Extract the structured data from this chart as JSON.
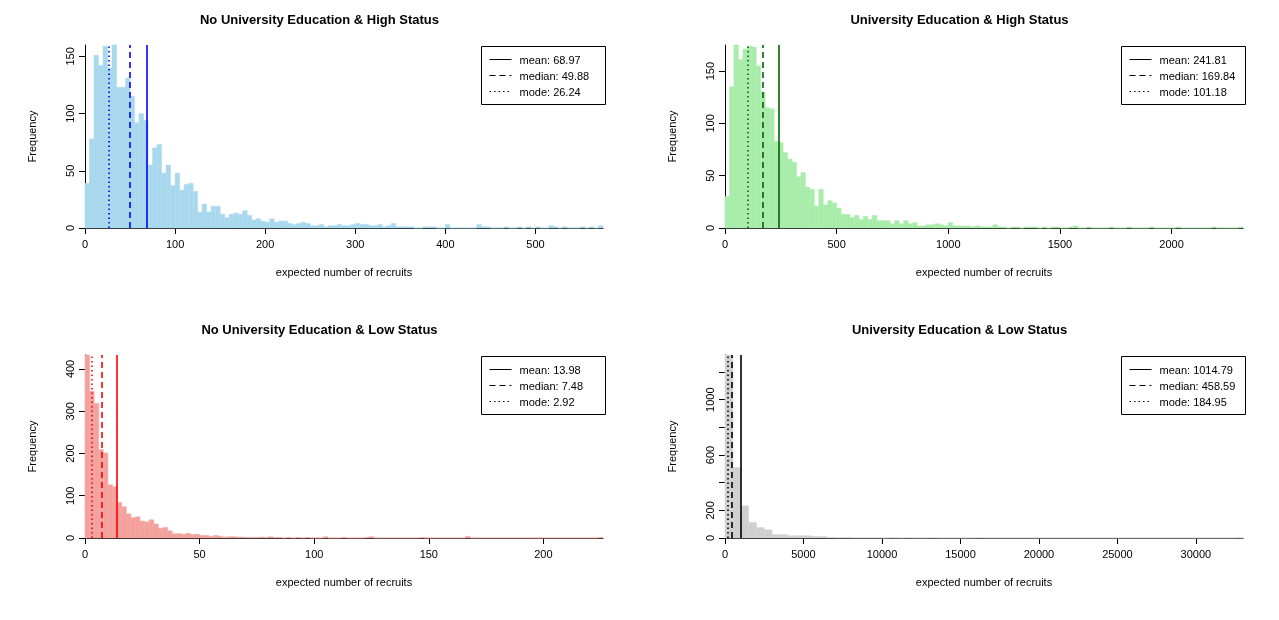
{
  "chart_data": [
    {
      "type": "histogram",
      "title": "No University Education & High Status",
      "xlabel": "expected number of recruits",
      "ylabel": "Frequency",
      "color": "#a8d8ee",
      "bins": [
        0,
        5,
        10,
        15,
        20,
        25,
        30,
        35,
        40,
        45,
        50,
        55,
        60,
        65,
        70,
        75,
        80,
        85,
        90,
        95,
        100,
        105,
        110,
        115,
        120,
        125,
        130,
        135,
        140,
        145,
        150,
        155,
        160,
        165,
        170,
        175,
        180,
        185,
        190,
        195,
        200,
        205,
        210,
        215,
        220,
        225,
        230,
        235,
        240,
        245,
        250,
        255,
        260,
        265,
        270,
        275,
        280,
        285,
        290,
        295,
        300,
        305,
        310,
        315,
        320,
        325,
        330,
        335,
        340,
        345,
        350,
        355,
        360,
        365,
        370,
        375,
        380,
        385,
        390,
        395,
        400,
        405,
        410,
        415,
        420,
        425,
        430,
        435,
        440,
        445,
        450,
        455,
        460,
        465,
        470,
        475,
        480,
        485,
        490,
        495,
        500,
        505,
        510,
        515,
        520,
        525,
        530,
        535,
        540,
        545,
        550,
        555,
        560,
        565,
        570,
        575
      ],
      "values": [
        39,
        78,
        151,
        142,
        159,
        140,
        160,
        123,
        123,
        131,
        115,
        92,
        100,
        94,
        55,
        70,
        73,
        48,
        55,
        37,
        48,
        33,
        38,
        39,
        32,
        14,
        21,
        14,
        19,
        19,
        12,
        9,
        12,
        13,
        12,
        15,
        11,
        7,
        8,
        6,
        5,
        8,
        5,
        6,
        6,
        4,
        3,
        4,
        5,
        4,
        2,
        2,
        3,
        1,
        2,
        2,
        3,
        2,
        2,
        3,
        4,
        3,
        3,
        2,
        2,
        3,
        1,
        2,
        4,
        1,
        1,
        1,
        1,
        0,
        0,
        1,
        1,
        1,
        0,
        0,
        3,
        0,
        0,
        0,
        0,
        0,
        0,
        3,
        1,
        1,
        0,
        0,
        0,
        1,
        0,
        0,
        1,
        0,
        1,
        0,
        1,
        0,
        0,
        2,
        1,
        0,
        1,
        0,
        0,
        0,
        1,
        0,
        1,
        0,
        2
      ],
      "xlim": [
        0,
        575
      ],
      "xticks": [
        0,
        100,
        200,
        300,
        400,
        500
      ],
      "ylim": [
        0,
        160
      ],
      "yticks": [
        0,
        50,
        100,
        150
      ],
      "grid": false,
      "annotations": [
        "mean: 68.97",
        "median: 49.88",
        "mode: 26.24"
      ],
      "ref_lines": [
        {
          "axis": "x",
          "value": 68.97,
          "color": "#0000ff",
          "line_style": "solid"
        },
        {
          "axis": "x",
          "value": 49.88,
          "color": "#0000ff",
          "line_style": "dashed"
        },
        {
          "axis": "x",
          "value": 26.24,
          "color": "#0000ff",
          "line_style": "dotted"
        }
      ]
    },
    {
      "type": "histogram",
      "title": "University Education & High Status",
      "xlabel": "expected number of recruits",
      "ylabel": "Frequency",
      "color": "#a8ecaa",
      "bins": [
        0,
        20,
        40,
        60,
        80,
        100,
        120,
        140,
        160,
        180,
        200,
        220,
        240,
        260,
        280,
        300,
        320,
        340,
        360,
        380,
        400,
        420,
        440,
        460,
        480,
        500,
        520,
        540,
        560,
        580,
        600,
        620,
        640,
        660,
        680,
        700,
        720,
        740,
        760,
        780,
        800,
        820,
        840,
        860,
        880,
        900,
        920,
        940,
        960,
        980,
        1000,
        1020,
        1040,
        1060,
        1080,
        1100,
        1120,
        1140,
        1160,
        1180,
        1200,
        1220,
        1240,
        1260,
        1280,
        1300,
        1320,
        1340,
        1360,
        1380,
        1400,
        1420,
        1440,
        1460,
        1480,
        1500,
        1520,
        1540,
        1560,
        1580,
        1600,
        1620,
        1640,
        1660,
        1680,
        1700,
        1720,
        1740,
        1760,
        1780,
        1800,
        1820,
        1840,
        1860,
        1880,
        1900,
        1920,
        1940,
        1960,
        1980,
        2000,
        2020,
        2040,
        2060,
        2080,
        2100,
        2120,
        2140,
        2160,
        2180,
        2200,
        2220,
        2240,
        2260,
        2280,
        2300,
        2320
      ],
      "values": [
        30,
        135,
        175,
        161,
        171,
        174,
        173,
        155,
        130,
        115,
        114,
        83,
        82,
        72,
        66,
        63,
        49,
        53,
        39,
        37,
        21,
        37,
        22,
        26,
        24,
        19,
        13,
        13,
        10,
        12,
        8,
        11,
        8,
        12,
        7,
        7,
        7,
        4,
        7,
        4,
        7,
        4,
        5,
        2,
        2,
        3,
        3,
        4,
        3,
        2,
        5,
        2,
        2,
        2,
        2,
        1,
        2,
        1,
        1,
        1,
        3,
        1,
        1,
        0,
        1,
        1,
        0,
        1,
        1,
        1,
        0,
        1,
        0,
        1,
        1,
        0,
        0,
        1,
        2,
        0,
        0,
        1,
        0,
        0,
        0,
        0,
        1,
        0,
        0,
        0,
        1,
        0,
        0,
        0,
        0,
        1,
        0,
        0,
        0,
        0,
        0,
        1,
        0,
        0,
        0,
        0,
        0,
        0,
        0,
        1,
        0,
        0,
        0,
        0,
        0,
        1
      ],
      "xlim": [
        0,
        2320
      ],
      "xticks": [
        0,
        500,
        1000,
        1500,
        2000
      ],
      "ylim": [
        0,
        175
      ],
      "yticks": [
        0,
        50,
        100,
        150
      ],
      "grid": false,
      "annotations": [
        "mean: 241.81",
        "median: 169.84",
        "mode: 101.18"
      ],
      "ref_lines": [
        {
          "axis": "x",
          "value": 241.81,
          "color": "#006400",
          "line_style": "solid"
        },
        {
          "axis": "x",
          "value": 169.84,
          "color": "#006400",
          "line_style": "dashed"
        },
        {
          "axis": "x",
          "value": 101.18,
          "color": "#006400",
          "line_style": "dotted"
        }
      ]
    },
    {
      "type": "histogram",
      "title": "No University Education & Low Status",
      "xlabel": "expected number of recruits",
      "ylabel": "Frequency",
      "color": "#f4a09c",
      "bins": [
        0,
        2,
        4,
        6,
        8,
        10,
        12,
        14,
        16,
        18,
        20,
        22,
        24,
        26,
        28,
        30,
        32,
        34,
        36,
        38,
        40,
        42,
        44,
        46,
        48,
        50,
        52,
        54,
        56,
        58,
        60,
        62,
        64,
        66,
        68,
        70,
        72,
        74,
        76,
        78,
        80,
        82,
        84,
        86,
        88,
        90,
        92,
        94,
        96,
        98,
        100,
        102,
        104,
        106,
        108,
        110,
        112,
        114,
        116,
        118,
        120,
        122,
        124,
        126,
        128,
        130,
        132,
        134,
        136,
        138,
        140,
        142,
        144,
        146,
        148,
        150,
        152,
        154,
        156,
        158,
        160,
        162,
        164,
        166,
        168,
        170,
        172,
        174,
        176,
        178,
        180,
        182,
        184,
        186,
        188,
        190,
        192,
        194,
        196,
        198,
        200,
        202,
        204,
        206,
        208,
        210,
        212,
        214,
        216,
        218,
        220,
        222,
        224,
        226
      ],
      "values": [
        433,
        347,
        318,
        209,
        201,
        126,
        121,
        84,
        74,
        57,
        48,
        50,
        40,
        38,
        43,
        33,
        23,
        25,
        17,
        10,
        10,
        9,
        11,
        8,
        9,
        6,
        6,
        4,
        6,
        4,
        2,
        3,
        3,
        2,
        2,
        1,
        1,
        1,
        2,
        1,
        3,
        1,
        1,
        0,
        1,
        0,
        1,
        0,
        1,
        0,
        0,
        0,
        3,
        0,
        0,
        0,
        1,
        0,
        0,
        0,
        0,
        1,
        3,
        0,
        0,
        0,
        0,
        0,
        0,
        0,
        0,
        0,
        0,
        1,
        0,
        0,
        0,
        0,
        0,
        0,
        0,
        0,
        0,
        4,
        0,
        0,
        0,
        0,
        0,
        0,
        0,
        0,
        0,
        0,
        0,
        0,
        0,
        0,
        0,
        0,
        0,
        0,
        0,
        0,
        0,
        0,
        0,
        0,
        0,
        0,
        0,
        0,
        1
      ],
      "xlim": [
        0,
        226
      ],
      "xticks": [
        0,
        50,
        100,
        150,
        200
      ],
      "ylim": [
        0,
        433
      ],
      "yticks": [
        0,
        100,
        200,
        300,
        400
      ],
      "grid": false,
      "annotations": [
        "mean: 13.98",
        "median: 7.48",
        "mode: 2.92"
      ],
      "ref_lines": [
        {
          "axis": "x",
          "value": 13.98,
          "color": "#ff0000",
          "line_style": "solid"
        },
        {
          "axis": "x",
          "value": 7.48,
          "color": "#ff0000",
          "line_style": "dashed"
        },
        {
          "axis": "x",
          "value": 2.92,
          "color": "#ff0000",
          "line_style": "dotted"
        }
      ]
    },
    {
      "type": "histogram",
      "title": "University Education & Low Status",
      "xlabel": "expected number of recruits",
      "ylabel": "Frequency",
      "color": "#d0d0d0",
      "bins": [
        0,
        500,
        1000,
        1500,
        2000,
        2500,
        3000,
        3500,
        4000,
        4500,
        5000,
        5500,
        6000,
        6500,
        7000,
        7500,
        8000,
        8500,
        9000,
        9500,
        10000,
        10500,
        11000,
        11500,
        12000,
        12500,
        13000,
        13500,
        14000,
        14500,
        15000,
        15500,
        16000,
        16500,
        17000,
        17500,
        18000,
        18500,
        19000,
        19500,
        20000,
        20500,
        21000,
        21500,
        22000,
        22500,
        23000,
        23500,
        24000,
        24500,
        25000,
        25500,
        26000,
        26500,
        27000,
        27500,
        28000,
        28500,
        29000,
        29500,
        30000,
        30500,
        31000,
        31500,
        32000,
        32500,
        33000
      ],
      "values": [
        1323,
        509,
        232,
        112,
        75,
        59,
        24,
        24,
        16,
        16,
        16,
        11,
        11,
        3,
        2,
        2,
        1,
        1,
        1,
        1,
        0,
        1,
        0,
        1,
        0,
        0,
        1,
        0,
        0,
        0,
        0,
        0,
        1,
        0,
        0,
        0,
        0,
        0,
        0,
        0,
        0,
        0,
        0,
        0,
        0,
        0,
        0,
        0,
        0,
        0,
        0,
        0,
        0,
        0,
        0,
        0,
        0,
        0,
        0,
        0,
        0,
        0,
        0,
        0,
        0,
        1
      ],
      "xlim": [
        0,
        33000
      ],
      "xticks": [
        0,
        5000,
        10000,
        15000,
        20000,
        25000,
        30000
      ],
      "ylim": [
        0,
        1323
      ],
      "yticks": [
        0,
        200,
        {
          "value": 400,
          "label": null
        },
        600,
        {
          "value": 800,
          "label": null
        },
        1000,
        {
          "value": 1200,
          "label": null
        }
      ],
      "grid": false,
      "annotations": [
        "mean: 1014.79",
        "median: 458.59",
        "mode: 184.95"
      ],
      "ref_lines": [
        {
          "axis": "x",
          "value": 1014.79,
          "color": "#000000",
          "line_style": "solid"
        },
        {
          "axis": "x",
          "value": 458.59,
          "color": "#000000",
          "line_style": "dashed"
        },
        {
          "axis": "x",
          "value": 184.95,
          "color": "#000000",
          "line_style": "dotted"
        }
      ]
    }
  ]
}
